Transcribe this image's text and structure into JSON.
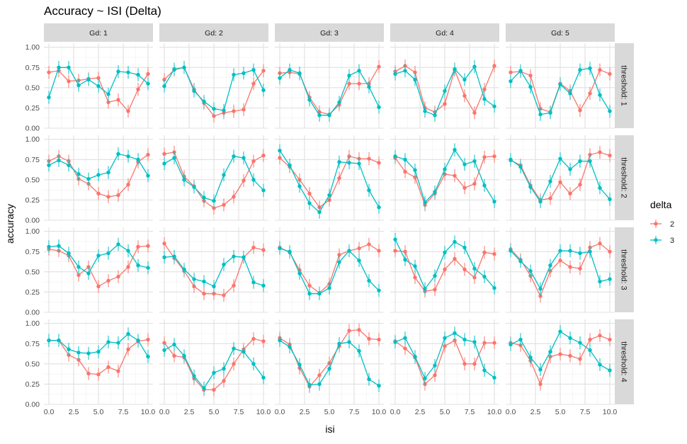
{
  "chart_data": {
    "type": "line",
    "title": "Accuracy ~ ISI (Delta)",
    "xlabel": "isi",
    "ylabel": "accuracy",
    "col_facet_labels": [
      "Gd: 1",
      "Gd: 2",
      "Gd: 3",
      "Gd: 4",
      "Gd: 5"
    ],
    "row_facet_labels": [
      "threshold: 1",
      "threshold: 2",
      "threshold: 3",
      "threshold: 4"
    ],
    "xlim": [
      -0.5,
      10.5
    ],
    "ylim": [
      0,
      1.05
    ],
    "x_ticks": [
      0,
      2.5,
      5,
      7.5,
      10
    ],
    "x_tick_labels": [
      "0.0",
      "2.5",
      "5.0",
      "7.5",
      "10.0"
    ],
    "y_ticks": [
      0,
      0.25,
      0.5,
      0.75,
      1
    ],
    "y_tick_labels": [
      "0.00",
      "0.25",
      "0.50",
      "0.75",
      "1.00"
    ],
    "grid": true,
    "legend_title": "delta",
    "legend_position": "right",
    "series": [
      {
        "name": "2",
        "color": "#F8766D"
      },
      {
        "name": "3",
        "color": "#00BFC4"
      }
    ],
    "x": [
      0,
      1,
      2,
      3,
      4,
      5,
      6,
      7,
      8,
      9,
      10
    ],
    "error_half_width": 0.08,
    "panels": [
      {
        "row": 1,
        "col": 1,
        "values": [
          [
            0.69,
            0.71,
            0.58,
            0.59,
            0.61,
            0.62,
            0.32,
            0.35,
            0.21,
            0.48,
            0.67
          ],
          [
            0.38,
            0.75,
            0.75,
            0.53,
            0.6,
            0.52,
            0.42,
            0.7,
            0.69,
            0.66,
            0.55
          ]
        ]
      },
      {
        "row": 1,
        "col": 2,
        "values": [
          [
            0.6,
            0.72,
            0.75,
            0.48,
            0.31,
            0.15,
            0.19,
            0.21,
            0.23,
            0.55,
            0.71
          ],
          [
            0.52,
            0.73,
            0.75,
            0.46,
            0.33,
            0.24,
            0.22,
            0.66,
            0.68,
            0.72,
            0.47
          ]
        ]
      },
      {
        "row": 1,
        "col": 3,
        "values": [
          [
            0.68,
            0.69,
            0.67,
            0.38,
            0.2,
            0.17,
            0.29,
            0.55,
            0.55,
            0.55,
            0.76
          ],
          [
            0.62,
            0.72,
            0.68,
            0.35,
            0.16,
            0.16,
            0.32,
            0.65,
            0.71,
            0.51,
            0.26
          ]
        ]
      },
      {
        "row": 1,
        "col": 4,
        "values": [
          [
            0.7,
            0.77,
            0.69,
            0.25,
            0.2,
            0.3,
            0.72,
            0.4,
            0.19,
            0.48,
            0.77
          ],
          [
            0.67,
            0.71,
            0.6,
            0.21,
            0.16,
            0.46,
            0.73,
            0.6,
            0.76,
            0.36,
            0.27
          ]
        ]
      },
      {
        "row": 1,
        "col": 5,
        "values": [
          [
            0.69,
            0.7,
            0.65,
            0.24,
            0.2,
            0.55,
            0.46,
            0.22,
            0.43,
            0.72,
            0.67
          ],
          [
            0.58,
            0.71,
            0.51,
            0.17,
            0.19,
            0.54,
            0.43,
            0.72,
            0.74,
            0.41,
            0.21
          ]
        ]
      },
      {
        "row": 2,
        "col": 1,
        "values": [
          [
            0.73,
            0.79,
            0.73,
            0.51,
            0.45,
            0.33,
            0.29,
            0.31,
            0.44,
            0.72,
            0.81
          ],
          [
            0.68,
            0.74,
            0.68,
            0.57,
            0.51,
            0.56,
            0.59,
            0.82,
            0.79,
            0.75,
            0.55
          ]
        ]
      },
      {
        "row": 2,
        "col": 2,
        "values": [
          [
            0.82,
            0.84,
            0.54,
            0.42,
            0.24,
            0.15,
            0.19,
            0.29,
            0.49,
            0.73,
            0.8
          ],
          [
            0.7,
            0.77,
            0.5,
            0.41,
            0.28,
            0.24,
            0.56,
            0.79,
            0.77,
            0.5,
            0.37
          ]
        ]
      },
      {
        "row": 2,
        "col": 3,
        "values": [
          [
            0.77,
            0.66,
            0.5,
            0.33,
            0.16,
            0.25,
            0.52,
            0.79,
            0.76,
            0.76,
            0.71
          ],
          [
            0.86,
            0.68,
            0.42,
            0.21,
            0.1,
            0.31,
            0.72,
            0.71,
            0.7,
            0.37,
            0.16
          ]
        ]
      },
      {
        "row": 2,
        "col": 4,
        "values": [
          [
            0.77,
            0.6,
            0.53,
            0.19,
            0.33,
            0.57,
            0.55,
            0.4,
            0.45,
            0.78,
            0.79
          ],
          [
            0.79,
            0.75,
            0.62,
            0.22,
            0.35,
            0.63,
            0.87,
            0.69,
            0.73,
            0.43,
            0.23
          ]
        ]
      },
      {
        "row": 2,
        "col": 5,
        "values": [
          [
            0.74,
            0.68,
            0.43,
            0.25,
            0.27,
            0.47,
            0.33,
            0.44,
            0.81,
            0.84,
            0.8
          ],
          [
            0.75,
            0.66,
            0.41,
            0.23,
            0.48,
            0.76,
            0.63,
            0.73,
            0.73,
            0.4,
            0.26
          ]
        ]
      },
      {
        "row": 3,
        "col": 1,
        "values": [
          [
            0.78,
            0.76,
            0.7,
            0.46,
            0.56,
            0.32,
            0.39,
            0.44,
            0.56,
            0.81,
            0.82
          ],
          [
            0.81,
            0.82,
            0.73,
            0.56,
            0.48,
            0.7,
            0.73,
            0.84,
            0.76,
            0.58,
            0.55
          ]
        ]
      },
      {
        "row": 3,
        "col": 2,
        "values": [
          [
            0.85,
            0.67,
            0.51,
            0.32,
            0.23,
            0.23,
            0.21,
            0.33,
            0.68,
            0.8,
            0.77
          ],
          [
            0.68,
            0.69,
            0.53,
            0.41,
            0.38,
            0.32,
            0.59,
            0.69,
            0.68,
            0.37,
            0.33
          ]
        ]
      },
      {
        "row": 3,
        "col": 3,
        "values": [
          [
            0.8,
            0.74,
            0.52,
            0.33,
            0.24,
            0.35,
            0.71,
            0.76,
            0.79,
            0.84,
            0.76
          ],
          [
            0.79,
            0.75,
            0.48,
            0.23,
            0.23,
            0.3,
            0.62,
            0.76,
            0.64,
            0.39,
            0.27
          ]
        ]
      },
      {
        "row": 3,
        "col": 4,
        "values": [
          [
            0.76,
            0.75,
            0.43,
            0.26,
            0.28,
            0.53,
            0.66,
            0.53,
            0.43,
            0.74,
            0.72
          ],
          [
            0.9,
            0.65,
            0.57,
            0.29,
            0.45,
            0.74,
            0.87,
            0.8,
            0.54,
            0.44,
            0.3
          ]
        ]
      },
      {
        "row": 3,
        "col": 5,
        "values": [
          [
            0.78,
            0.65,
            0.45,
            0.2,
            0.51,
            0.64,
            0.56,
            0.54,
            0.8,
            0.85,
            0.75
          ],
          [
            0.76,
            0.63,
            0.51,
            0.29,
            0.58,
            0.76,
            0.76,
            0.73,
            0.75,
            0.38,
            0.41
          ]
        ]
      },
      {
        "row": 4,
        "col": 1,
        "values": [
          [
            0.79,
            0.79,
            0.61,
            0.55,
            0.38,
            0.37,
            0.46,
            0.41,
            0.68,
            0.78,
            0.8
          ],
          [
            0.79,
            0.79,
            0.68,
            0.64,
            0.63,
            0.65,
            0.77,
            0.76,
            0.87,
            0.79,
            0.59
          ]
        ]
      },
      {
        "row": 4,
        "col": 2,
        "values": [
          [
            0.76,
            0.6,
            0.58,
            0.32,
            0.18,
            0.18,
            0.29,
            0.5,
            0.68,
            0.81,
            0.78
          ],
          [
            0.67,
            0.74,
            0.6,
            0.35,
            0.2,
            0.39,
            0.44,
            0.69,
            0.65,
            0.5,
            0.33
          ]
        ]
      },
      {
        "row": 4,
        "col": 3,
        "values": [
          [
            0.82,
            0.74,
            0.45,
            0.22,
            0.36,
            0.51,
            0.72,
            0.91,
            0.92,
            0.81,
            0.8
          ],
          [
            0.79,
            0.71,
            0.49,
            0.24,
            0.25,
            0.44,
            0.75,
            0.77,
            0.66,
            0.31,
            0.23
          ]
        ]
      },
      {
        "row": 4,
        "col": 4,
        "values": [
          [
            0.78,
            0.69,
            0.58,
            0.25,
            0.36,
            0.72,
            0.79,
            0.5,
            0.5,
            0.76,
            0.76
          ],
          [
            0.77,
            0.82,
            0.59,
            0.32,
            0.48,
            0.82,
            0.88,
            0.8,
            0.77,
            0.42,
            0.33
          ]
        ]
      },
      {
        "row": 4,
        "col": 5,
        "values": [
          [
            0.76,
            0.73,
            0.54,
            0.25,
            0.59,
            0.62,
            0.6,
            0.56,
            0.8,
            0.85,
            0.8
          ],
          [
            0.74,
            0.8,
            0.58,
            0.43,
            0.65,
            0.9,
            0.82,
            0.76,
            0.67,
            0.49,
            0.42
          ]
        ]
      }
    ]
  }
}
